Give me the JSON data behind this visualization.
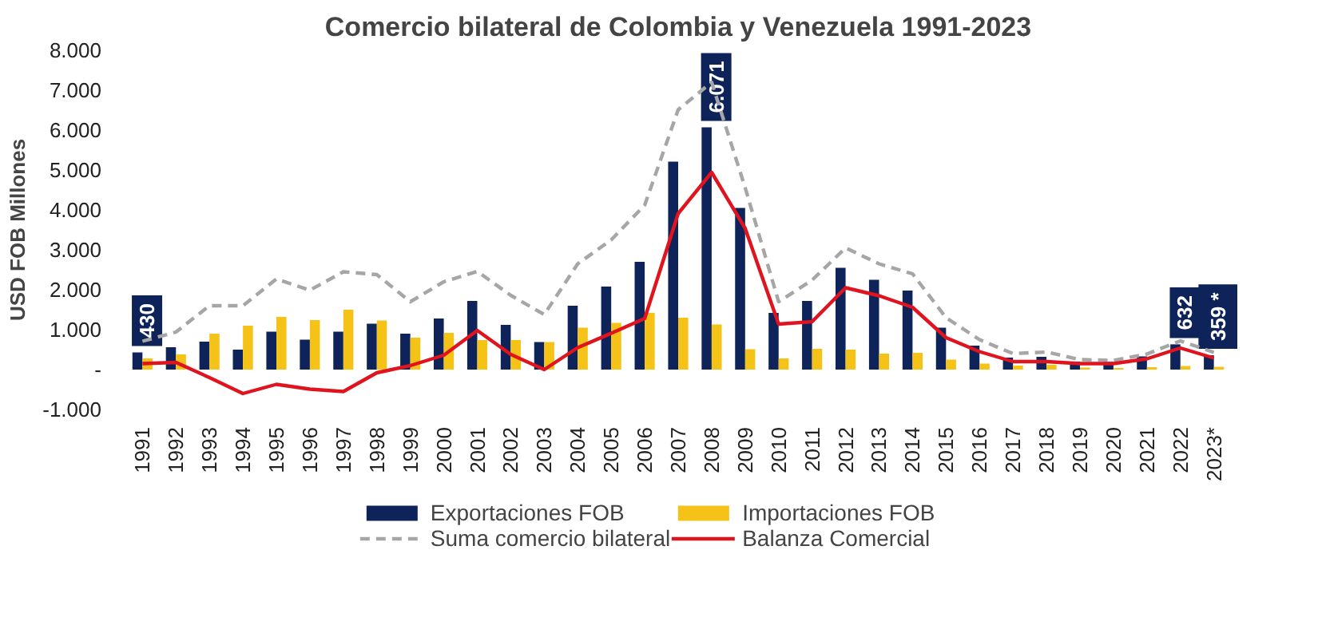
{
  "chart_data": {
    "type": "bar",
    "title": "Comercio bilateral de Colombia y Venezuela 1991-2023",
    "ylabel": "USD FOB Millones",
    "categories": [
      "1991",
      "1992",
      "1993",
      "1994",
      "1995",
      "1996",
      "1997",
      "1998",
      "1999",
      "2000",
      "2001",
      "2002",
      "2003",
      "2004",
      "2005",
      "2006",
      "2007",
      "2008",
      "2009",
      "2010",
      "2011",
      "2012",
      "2013",
      "2014",
      "2015",
      "2016",
      "2017",
      "2018",
      "2019",
      "2020",
      "2021",
      "2022",
      "2023*"
    ],
    "series": [
      {
        "name": "Exportaciones FOB",
        "color": "#0d2359",
        "values": [
          430,
          560,
          700,
          500,
          950,
          750,
          950,
          1150,
          900,
          1280,
          1720,
          1120,
          690,
          1600,
          2080,
          2700,
          5210,
          6071,
          4050,
          1420,
          1720,
          2550,
          2250,
          1980,
          1050,
          600,
          300,
          320,
          200,
          190,
          330,
          632,
          359
        ],
        "value_labels": [
          "430",
          null,
          null,
          null,
          null,
          null,
          null,
          null,
          null,
          null,
          null,
          null,
          null,
          null,
          null,
          null,
          null,
          "6.071",
          null,
          null,
          null,
          null,
          null,
          null,
          null,
          null,
          null,
          null,
          null,
          null,
          null,
          "632",
          "359 *"
        ]
      },
      {
        "name": "Importaciones FOB",
        "color": "#f5c218",
        "values": [
          280,
          380,
          900,
          1100,
          1320,
          1240,
          1500,
          1230,
          800,
          920,
          740,
          740,
          690,
          1050,
          1170,
          1420,
          1300,
          1130,
          510,
          280,
          520,
          500,
          400,
          420,
          250,
          150,
          100,
          120,
          50,
          40,
          60,
          90,
          70
        ]
      },
      {
        "name": "Suma comercio bilateral",
        "type": "line",
        "line_style": "dashed",
        "color": "#a6a6a6",
        "values": [
          710,
          940,
          1600,
          1600,
          2270,
          1990,
          2450,
          2380,
          1700,
          2200,
          2460,
          1860,
          1380,
          2650,
          3250,
          4120,
          6510,
          7200,
          4560,
          1700,
          2240,
          3050,
          2650,
          2400,
          1300,
          750,
          400,
          440,
          250,
          230,
          390,
          720,
          430
        ]
      },
      {
        "name": "Balanza Comercial",
        "type": "line",
        "line_style": "solid",
        "color": "#e0141e",
        "values": [
          150,
          180,
          -200,
          -600,
          -370,
          -490,
          -550,
          -80,
          100,
          360,
          980,
          380,
          0,
          550,
          910,
          1280,
          3910,
          4940,
          3540,
          1140,
          1200,
          2050,
          1850,
          1560,
          800,
          450,
          200,
          200,
          150,
          150,
          270,
          540,
          290
        ]
      }
    ],
    "ylim": [
      -1000,
      8000
    ],
    "yticks": [
      {
        "value": -1000,
        "label": "-1.000"
      },
      {
        "value": 0,
        "label": "-"
      },
      {
        "value": 1000,
        "label": "1.000"
      },
      {
        "value": 2000,
        "label": "2.000"
      },
      {
        "value": 3000,
        "label": "3.000"
      },
      {
        "value": 4000,
        "label": "4.000"
      },
      {
        "value": 5000,
        "label": "5.000"
      },
      {
        "value": 6000,
        "label": "6.000"
      },
      {
        "value": 7000,
        "label": "7.000"
      },
      {
        "value": 8000,
        "label": "8.000"
      }
    ],
    "grid": false,
    "legend": "bottom"
  }
}
